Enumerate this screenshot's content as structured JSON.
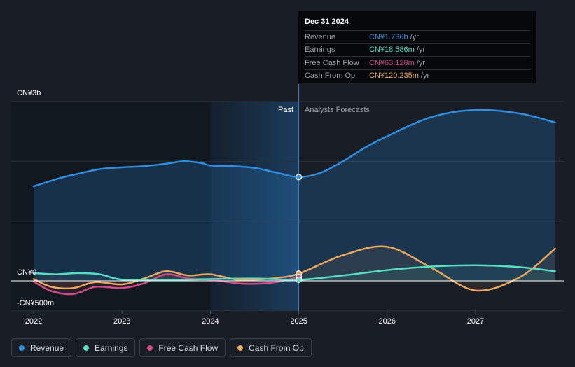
{
  "colors": {
    "revenue": "#2d8fe0",
    "earnings": "#58dcc4",
    "free_cash_flow": "#d04a86",
    "cash_from_op": "#e8a95c",
    "background": "#181d26"
  },
  "tooltip": {
    "date": "Dec 31 2024",
    "rows": [
      {
        "label": "Revenue",
        "value": "CN¥1.736b",
        "unit": "/yr"
      },
      {
        "label": "Earnings",
        "value": "CN¥18.586m",
        "unit": "/yr"
      },
      {
        "label": "Free Cash Flow",
        "value": "CN¥63.128m",
        "unit": "/yr"
      },
      {
        "label": "Cash From Op",
        "value": "CN¥120.235m",
        "unit": "/yr"
      }
    ]
  },
  "legend": {
    "items": [
      {
        "label": "Revenue",
        "color_key": "revenue"
      },
      {
        "label": "Earnings",
        "color_key": "earnings"
      },
      {
        "label": "Free Cash Flow",
        "color_key": "free_cash_flow"
      },
      {
        "label": "Cash From Op",
        "color_key": "cash_from_op"
      }
    ]
  },
  "chart_data": {
    "type": "line",
    "title": "",
    "xlabel": "",
    "ylabel": "",
    "ylim": [
      -500,
      3000
    ],
    "xlim": [
      2021.9,
      2027.9
    ],
    "y_tick_labels": [
      {
        "value": 3000,
        "label": "CN¥3b"
      },
      {
        "value": 0,
        "label": "CN¥0"
      },
      {
        "value": -500,
        "label": "-CN¥500m"
      }
    ],
    "x_ticks": [
      2022,
      2023,
      2024,
      2025,
      2026,
      2027
    ],
    "x_tick_labels": [
      "2022",
      "2023",
      "2024",
      "2025",
      "2026",
      "2027"
    ],
    "past_label": "Past",
    "forecast_label": "Analysts Forecasts",
    "divider_x": 2025.0,
    "past_shade_start": 2024.0,
    "grid": true,
    "legend_position": "bottom-left",
    "series": [
      {
        "name": "Revenue",
        "color_key": "revenue",
        "fill": true,
        "x": [
          2022.0,
          2022.3,
          2022.5,
          2022.75,
          2023.0,
          2023.25,
          2023.5,
          2023.7,
          2023.9,
          2024.0,
          2024.25,
          2024.5,
          2024.75,
          2025.0,
          2025.25,
          2025.5,
          2025.75,
          2026.0,
          2026.5,
          2027.0,
          2027.5,
          2027.9
        ],
        "values": [
          1580,
          1720,
          1790,
          1870,
          1900,
          1920,
          1960,
          2000,
          1970,
          1930,
          1920,
          1890,
          1810,
          1736,
          1810,
          2000,
          2230,
          2420,
          2740,
          2860,
          2800,
          2650
        ]
      },
      {
        "name": "Earnings",
        "color_key": "earnings",
        "fill": false,
        "x": [
          2022.0,
          2022.25,
          2022.5,
          2022.75,
          2023.0,
          2023.5,
          2024.0,
          2024.5,
          2025.0,
          2025.5,
          2026.0,
          2026.5,
          2027.0,
          2027.5,
          2027.9
        ],
        "values": [
          130,
          110,
          130,
          110,
          20,
          15,
          30,
          40,
          18.586,
          90,
          180,
          240,
          260,
          230,
          160
        ]
      },
      {
        "name": "Free Cash Flow",
        "color_key": "free_cash_flow",
        "fill": false,
        "x": [
          2022.0,
          2022.2,
          2022.45,
          2022.7,
          2023.0,
          2023.25,
          2023.5,
          2023.75,
          2024.0,
          2024.3,
          2024.5,
          2024.75,
          2025.0
        ],
        "values": [
          -10,
          -170,
          -220,
          -100,
          -120,
          -40,
          110,
          40,
          20,
          -40,
          -50,
          -20,
          63.128
        ]
      },
      {
        "name": "Cash From Op",
        "color_key": "cash_from_op",
        "fill": false,
        "x": [
          2022.0,
          2022.2,
          2022.45,
          2022.7,
          2023.0,
          2023.25,
          2023.5,
          2023.75,
          2024.0,
          2024.3,
          2024.5,
          2024.75,
          2025.0,
          2025.5,
          2026.0,
          2026.5,
          2027.0,
          2027.5,
          2027.9
        ],
        "values": [
          30,
          -100,
          -120,
          -20,
          -60,
          40,
          160,
          90,
          110,
          20,
          20,
          50,
          120.235,
          430,
          570,
          220,
          -160,
          60,
          540
        ]
      }
    ]
  }
}
